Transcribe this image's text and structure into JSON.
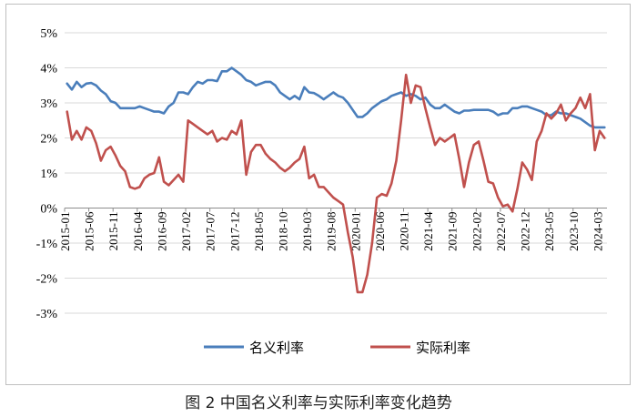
{
  "caption": "图 2  中国名义利率与实际利率变化趋势",
  "chart_data": {
    "type": "line",
    "title": "",
    "xlabel": "",
    "ylabel": "",
    "ylim": [
      -3,
      5
    ],
    "yticks": [
      "5%",
      "4%",
      "3%",
      "2%",
      "1%",
      "0%",
      "-1%",
      "-2%",
      "-3%"
    ],
    "grid": "horizontal",
    "legend_position": "bottom-center",
    "x_start": "2015-01",
    "x_end": "2024-04",
    "xticks": [
      "2015-01",
      "2015-06",
      "2015-11",
      "2016-04",
      "2016-09",
      "2017-02",
      "2017-07",
      "2017-12",
      "2018-05",
      "2018-10",
      "2019-03",
      "2019-08",
      "2020-01",
      "2020-06",
      "2020-11",
      "2021-04",
      "2021-09",
      "2022-02",
      "2022-07",
      "2022-12",
      "2023-05",
      "2023-10",
      "2024-03"
    ],
    "series": [
      {
        "name": "名义利率",
        "color": "#4a7ebb",
        "values": [
          3.55,
          3.38,
          3.6,
          3.45,
          3.55,
          3.57,
          3.5,
          3.35,
          3.25,
          3.05,
          3.0,
          2.85,
          2.85,
          2.85,
          2.85,
          2.9,
          2.85,
          2.8,
          2.75,
          2.75,
          2.7,
          2.9,
          3.0,
          3.3,
          3.3,
          3.25,
          3.45,
          3.6,
          3.55,
          3.65,
          3.65,
          3.62,
          3.9,
          3.9,
          4.0,
          3.9,
          3.8,
          3.65,
          3.6,
          3.5,
          3.55,
          3.6,
          3.6,
          3.5,
          3.3,
          3.2,
          3.1,
          3.2,
          3.1,
          3.45,
          3.3,
          3.28,
          3.2,
          3.1,
          3.2,
          3.3,
          3.2,
          3.15,
          3.0,
          2.8,
          2.6,
          2.6,
          2.7,
          2.85,
          2.95,
          3.05,
          3.1,
          3.2,
          3.25,
          3.3,
          3.2,
          3.25,
          3.2,
          3.1,
          3.15,
          2.95,
          2.85,
          2.85,
          2.95,
          2.85,
          2.75,
          2.7,
          2.78,
          2.78,
          2.8,
          2.8,
          2.8,
          2.8,
          2.75,
          2.65,
          2.7,
          2.7,
          2.85,
          2.85,
          2.9,
          2.9,
          2.85,
          2.8,
          2.75,
          2.65,
          2.65,
          2.75,
          2.7,
          2.7,
          2.65,
          2.6,
          2.55,
          2.45,
          2.35,
          2.3,
          2.3,
          2.3
        ]
      },
      {
        "name": "实际利率",
        "color": "#c0504d",
        "values": [
          2.75,
          1.95,
          2.2,
          1.95,
          2.3,
          2.2,
          1.85,
          1.35,
          1.65,
          1.75,
          1.5,
          1.2,
          1.05,
          0.6,
          0.55,
          0.6,
          0.85,
          0.95,
          1.0,
          1.45,
          0.75,
          0.65,
          0.8,
          0.95,
          0.75,
          2.5,
          2.4,
          2.3,
          2.2,
          2.1,
          2.2,
          1.9,
          2.0,
          1.95,
          2.2,
          2.1,
          2.5,
          0.95,
          1.6,
          1.8,
          1.8,
          1.55,
          1.4,
          1.3,
          1.15,
          1.05,
          1.15,
          1.3,
          1.4,
          1.75,
          0.85,
          0.95,
          0.6,
          0.6,
          0.45,
          0.3,
          0.2,
          0.1,
          -0.7,
          -1.4,
          -2.4,
          -2.4,
          -1.9,
          -1.0,
          0.3,
          0.4,
          0.35,
          0.7,
          1.35,
          2.5,
          3.8,
          3.0,
          3.5,
          3.45,
          2.85,
          2.3,
          1.8,
          2.0,
          1.9,
          2.0,
          2.1,
          1.4,
          0.6,
          1.3,
          1.8,
          1.9,
          1.35,
          0.75,
          0.7,
          0.3,
          0.05,
          0.1,
          -0.1,
          0.55,
          1.3,
          1.1,
          0.8,
          1.9,
          2.2,
          2.7,
          2.55,
          2.7,
          2.95,
          2.5,
          2.7,
          2.85,
          3.15,
          2.85,
          3.25,
          1.65,
          2.2,
          2.0
        ]
      }
    ]
  }
}
